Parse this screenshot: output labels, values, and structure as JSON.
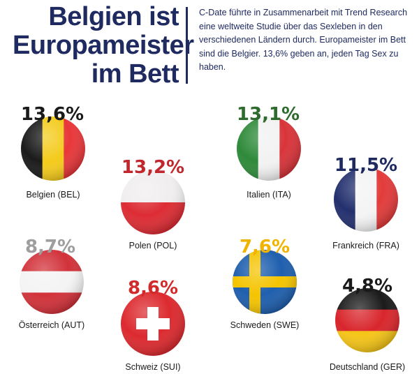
{
  "header": {
    "title_lines": [
      "Belgien ist",
      "Europameister",
      "im Bett"
    ],
    "intro": "C-Date führte in Zusammenarbeit mit Trend Research eine weltweite Studie über das Sexleben in den verschiedenen Ländern durch. Europameister im Bett sind die Belgier. 13,6% geben an, jeden Tag Sex zu haben."
  },
  "chart_data": {
    "type": "bar",
    "title": "Belgien ist Europameister im Bett",
    "unit": "%",
    "series": [
      {
        "country": "Belgien (BEL)",
        "value": 13.6,
        "value_label": "13,6%",
        "color": "#1a1a1a",
        "flag": "belgium"
      },
      {
        "country": "Polen (POL)",
        "value": 13.2,
        "value_label": "13,2%",
        "color": "#c0282d",
        "flag": "poland"
      },
      {
        "country": "Italien (ITA)",
        "value": 13.1,
        "value_label": "13,1%",
        "color": "#2e6b2e",
        "flag": "italy"
      },
      {
        "country": "Frankreich (FRA)",
        "value": 11.5,
        "value_label": "11,5%",
        "color": "#1f2a60",
        "flag": "france"
      },
      {
        "country": "Österreich (AUT)",
        "value": 8.7,
        "value_label": "8,7%",
        "color": "#9e9e9e",
        "flag": "austria"
      },
      {
        "country": "Schweiz (SUI)",
        "value": 8.6,
        "value_label": "8,6%",
        "color": "#d22a2a",
        "flag": "switzerland"
      },
      {
        "country": "Schweden (SWE)",
        "value": 7.6,
        "value_label": "7,6%",
        "color": "#f0b400",
        "flag": "sweden"
      },
      {
        "country": "Deutschland (GER)",
        "value": 4.8,
        "value_label": "4,8%",
        "color": "#1a1a1a",
        "flag": "germany"
      }
    ]
  }
}
